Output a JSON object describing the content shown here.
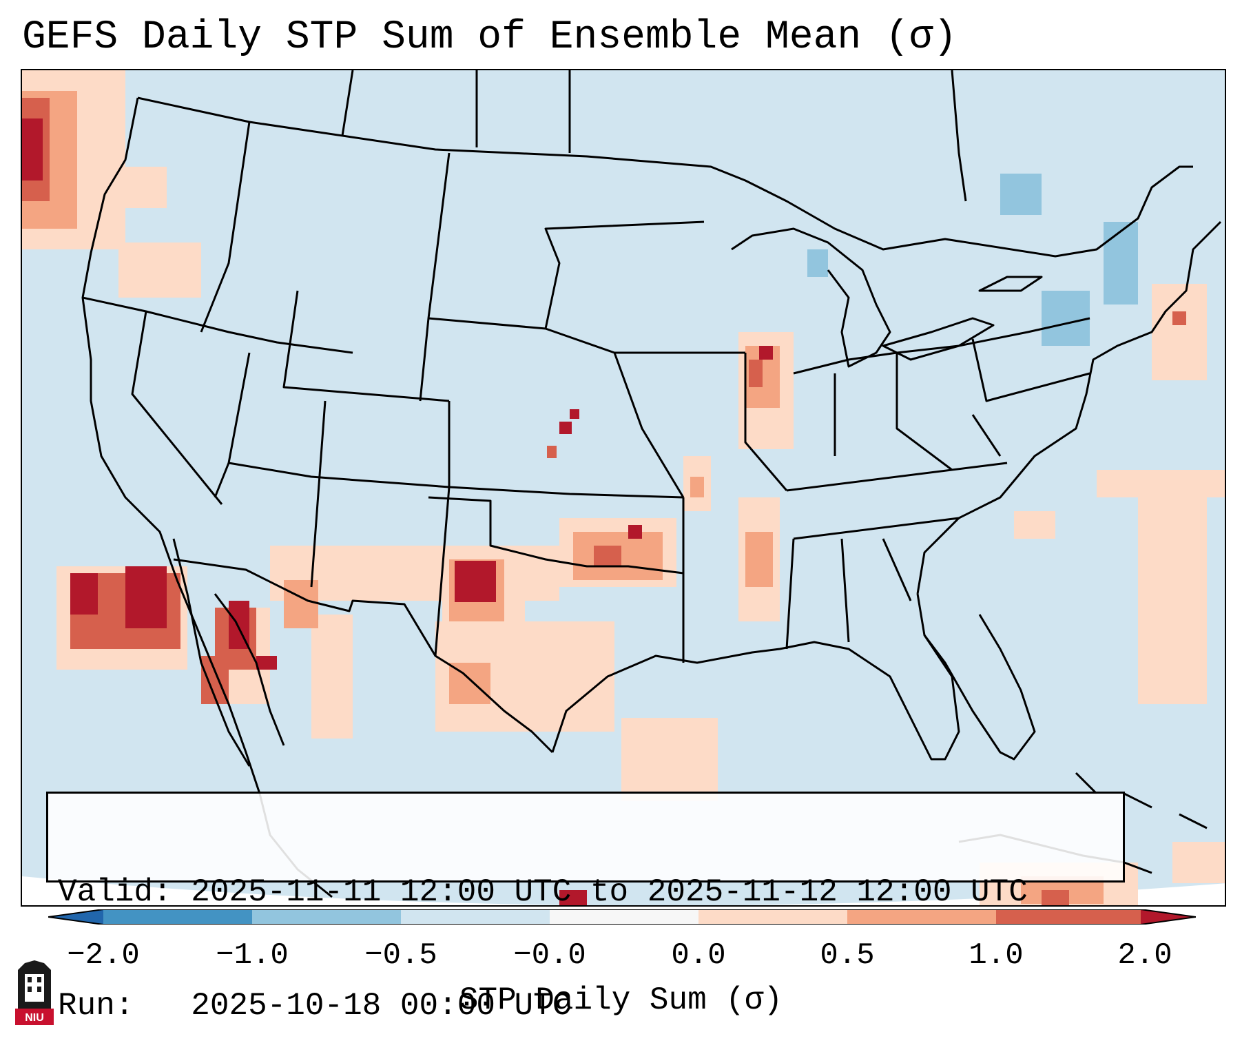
{
  "title": "GEFS Daily STP Sum of Ensemble Mean (σ)",
  "info_box": {
    "valid_label": "Valid:",
    "valid_value": "2025-11-11 12:00 UTC to 2025-11-12 12:00 UTC",
    "run_label": "Run:",
    "run_value": "2025-10-18 00:00 UTC"
  },
  "colorbar": {
    "label": "STP Daily Sum (σ)",
    "ticks": [
      "−2.0",
      "−1.0",
      "−0.5",
      "−0.0",
      "0.0",
      "0.5",
      "1.0",
      "2.0"
    ],
    "bins": [
      {
        "range": "below -2.0",
        "color": "#2166ac"
      },
      {
        "range": "-2.0 to -1.0",
        "color": "#4393c3"
      },
      {
        "range": "-1.0 to -0.5",
        "color": "#92c5de"
      },
      {
        "range": "-0.5 to -0.0",
        "color": "#d1e5f0"
      },
      {
        "range": "-0.0 to 0.0",
        "color": "#f7f7f7"
      },
      {
        "range": "0.0 to 0.5",
        "color": "#fddbc7"
      },
      {
        "range": "0.5 to 1.0",
        "color": "#f4a582"
      },
      {
        "range": "1.0 to 2.0",
        "color": "#d6604d"
      },
      {
        "range": "above 2.0",
        "color": "#b2182b"
      }
    ]
  },
  "logo": {
    "text": "NIU"
  },
  "map": {
    "background_color": "#d1e5f0",
    "hotspots": [
      {
        "region": "Pacific Northwest coast",
        "category": "1.0 to 2.0+"
      },
      {
        "region": "Eastern Pacific off Baja California",
        "category": "above 2.0"
      },
      {
        "region": "Gulf of California",
        "category": "above 2.0"
      },
      {
        "region": "Eastern New Mexico / West Texas",
        "category": "above 2.0"
      },
      {
        "region": "Central Oklahoma",
        "category": "1.0 to 2.0"
      },
      {
        "region": "Western Kansas",
        "category": "above 2.0"
      },
      {
        "region": "Northern Illinois",
        "category": "above 2.0"
      },
      {
        "region": "Caribbean south of Cuba",
        "category": "0.5 to 1.0"
      },
      {
        "region": "Great Lakes / Northeast",
        "category": "-1.0 to -0.5"
      }
    ]
  }
}
